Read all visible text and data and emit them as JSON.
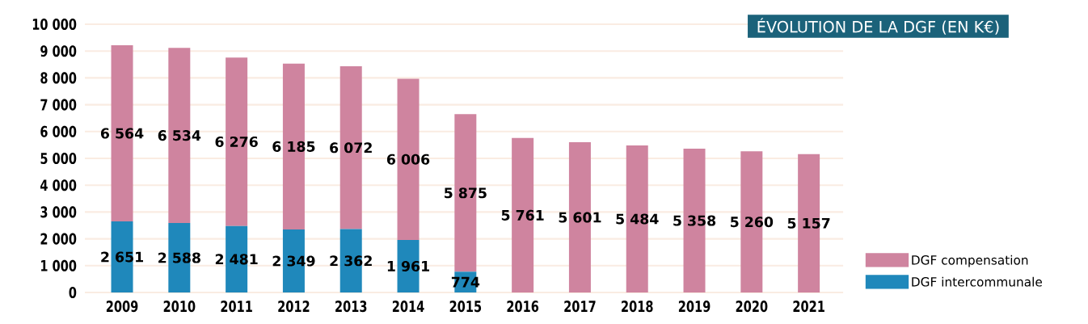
{
  "chart_data": {
    "type": "bar",
    "stacked": true,
    "title": "ÉVOLUTION DE LA DGF (EN K€)",
    "categories": [
      "2009",
      "2010",
      "2011",
      "2012",
      "2013",
      "2014",
      "2015",
      "2016",
      "2017",
      "2018",
      "2019",
      "2020",
      "2021"
    ],
    "series": [
      {
        "name": "DGF intercommunale",
        "color": "#1f88bb",
        "values": [
          2651,
          2588,
          2481,
          2349,
          2362,
          1961,
          774,
          null,
          null,
          null,
          null,
          null,
          null
        ],
        "value_labels": [
          "2 651",
          "2 588",
          "2 481",
          "2 349",
          "2 362",
          "1 961",
          "774",
          null,
          null,
          null,
          null,
          null,
          null
        ]
      },
      {
        "name": "DGF compensation",
        "color": "#cf849f",
        "values": [
          6564,
          6534,
          6276,
          6185,
          6072,
          6006,
          5875,
          5761,
          5601,
          5484,
          5358,
          5260,
          5157
        ],
        "value_labels": [
          "6 564",
          "6 534",
          "6 276",
          "6 185",
          "6 072",
          "6 006",
          "5 875",
          "5 761",
          "5 601",
          "5 484",
          "5 358",
          "5 260",
          "5 157"
        ]
      }
    ],
    "ylim": [
      0,
      10000
    ],
    "yticks": [
      0,
      {
        "value": 1000,
        "label": "1 000"
      },
      {
        "value": 2000,
        "label": "2 000"
      },
      {
        "value": 3000,
        "label": "3 000"
      },
      {
        "value": 4000,
        "label": "4 000"
      },
      {
        "value": 5000,
        "label": "5 000"
      },
      {
        "value": 6000,
        "label": "6 000"
      },
      {
        "value": 7000,
        "label": "7 000"
      },
      {
        "value": 8000,
        "label": "8 000"
      },
      {
        "value": 9000,
        "label": "9 000"
      },
      {
        "value": 10000,
        "label": "10 000"
      }
    ],
    "grid": "y",
    "legend": "bottom right"
  }
}
